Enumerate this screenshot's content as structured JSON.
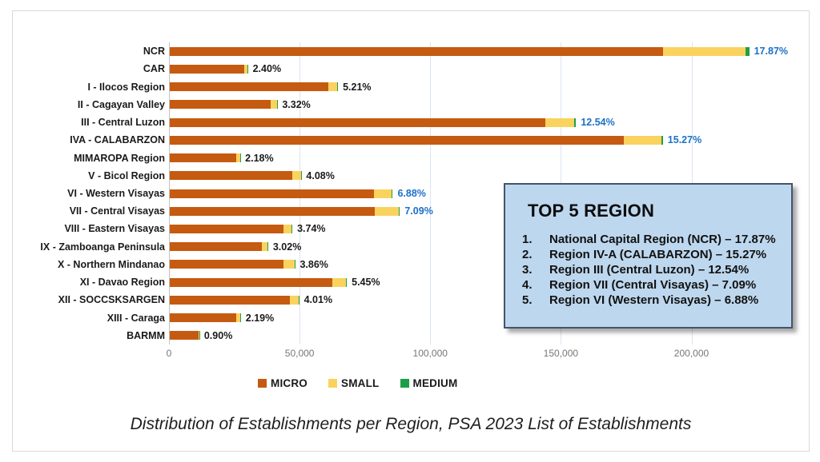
{
  "chart_data": {
    "type": "bar",
    "orientation": "horizontal",
    "stacked": true,
    "title": "Distribution of Establishments per Region, PSA 2023 List of Establishments",
    "xlabel": "",
    "ylabel": "",
    "axis": {
      "tick_labels": [
        "0",
        "50,000",
        "100,000",
        "150,000",
        "200,000"
      ],
      "tick_values": [
        0,
        50000,
        100000,
        150000,
        200000
      ],
      "max": 240000,
      "grid": true
    },
    "legend": {
      "position": "bottom",
      "entries": [
        {
          "name": "MICRO",
          "color": "#c55a11"
        },
        {
          "name": "SMALL",
          "color": "#fad35e"
        },
        {
          "name": "MEDIUM",
          "color": "#1f9e48"
        }
      ]
    },
    "series_names": [
      "MICRO",
      "SMALL",
      "MEDIUM"
    ],
    "colors": {
      "micro": "#c55a11",
      "small": "#fad35e",
      "medium": "#1f9e48",
      "label_default": "#1a1a1a",
      "label_highlight": "#1c70c8"
    },
    "regions": [
      {
        "label": "NCR",
        "micro": 188700,
        "small": 31600,
        "medium": 1500,
        "pct_label": "17.87%",
        "highlight": true
      },
      {
        "label": "CAR",
        "micro": 28400,
        "small": 1400,
        "medium": 120,
        "pct_label": "2.40%",
        "highlight": false
      },
      {
        "label": "I - Ilocos Region",
        "micro": 60700,
        "small": 3400,
        "medium": 300,
        "pct_label": "5.21%",
        "highlight": false
      },
      {
        "label": "II - Cagayan Valley",
        "micro": 38600,
        "small": 2400,
        "medium": 170,
        "pct_label": "3.32%",
        "highlight": false
      },
      {
        "label": "III - Central Luzon",
        "micro": 143900,
        "small": 11000,
        "medium": 600,
        "pct_label": "12.54%",
        "highlight": true
      },
      {
        "label": "IVA - CALABARZON",
        "micro": 173700,
        "small": 14400,
        "medium": 650,
        "pct_label": "15.27%",
        "highlight": true
      },
      {
        "label": "MIMAROPA Region",
        "micro": 25400,
        "small": 1500,
        "medium": 120,
        "pct_label": "2.18%",
        "highlight": false
      },
      {
        "label": "V - Bicol Region",
        "micro": 46800,
        "small": 3400,
        "medium": 200,
        "pct_label": "4.08%",
        "highlight": false
      },
      {
        "label": "VI - Western Visayas",
        "micro": 78100,
        "small": 6800,
        "medium": 450,
        "pct_label": "6.88%",
        "highlight": true
      },
      {
        "label": "VII - Central Visayas",
        "micro": 78400,
        "small": 9200,
        "medium": 480,
        "pct_label": "7.09%",
        "highlight": true
      },
      {
        "label": "VIII - Eastern Visayas",
        "micro": 43400,
        "small": 3300,
        "medium": 220,
        "pct_label": "3.74%",
        "highlight": false
      },
      {
        "label": "IX - Zamboanga Peninsula",
        "micro": 35100,
        "small": 2400,
        "medium": 160,
        "pct_label": "3.02%",
        "highlight": false
      },
      {
        "label": "X - Northern Mindanao",
        "micro": 43400,
        "small": 4300,
        "medium": 260,
        "pct_label": "3.86%",
        "highlight": false
      },
      {
        "label": "XI - Davao Region",
        "micro": 62200,
        "small": 5200,
        "medium": 380,
        "pct_label": "5.45%",
        "highlight": false
      },
      {
        "label": "XII - SOCCSKSARGEN",
        "micro": 45900,
        "small": 3400,
        "medium": 240,
        "pct_label": "4.01%",
        "highlight": false
      },
      {
        "label": "XIII - Caraga",
        "micro": 25300,
        "small": 1800,
        "medium": 120,
        "pct_label": "2.19%",
        "highlight": false
      },
      {
        "label": "BARMM",
        "micro": 10900,
        "small": 350,
        "medium": 50,
        "pct_label": "0.90%",
        "highlight": false
      }
    ]
  },
  "annotation_box": {
    "title": "TOP 5 REGION",
    "fill": "#bdd7ee",
    "border": "#44546a",
    "items": [
      {
        "num": "1.",
        "text": "National Capital Region (NCR) – 17.87%"
      },
      {
        "num": "2.",
        "text": "Region IV-A (CALABARZON) – 15.27%"
      },
      {
        "num": "3.",
        "text": "Region III (Central Luzon) – 12.54%"
      },
      {
        "num": "4.",
        "text": "Region VII (Central Visayas) – 7.09%"
      },
      {
        "num": "5.",
        "text": "Region VI (Western Visayas) – 6.88%"
      }
    ]
  },
  "caption": "Distribution of Establishments per Region, PSA 2023 List of Establishments"
}
